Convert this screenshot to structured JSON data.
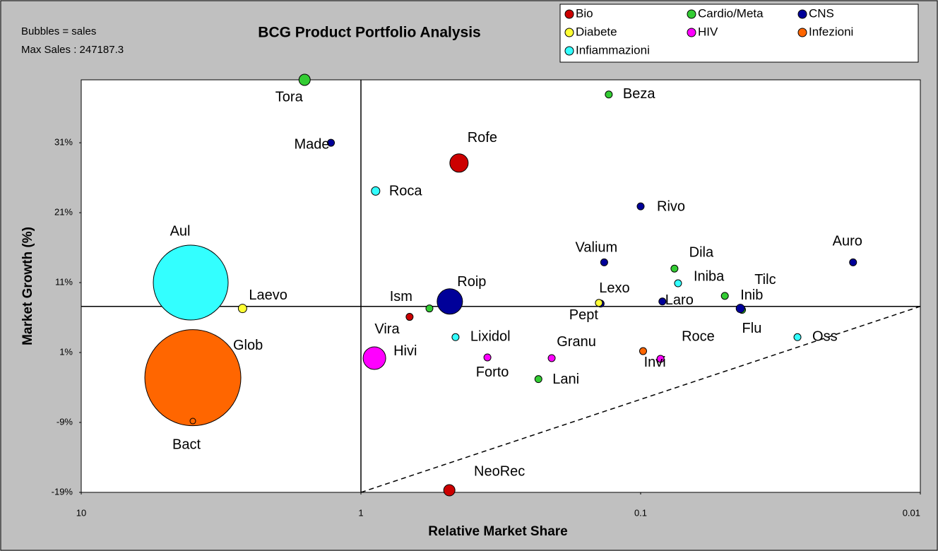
{
  "chart_data": {
    "type": "bubble",
    "title": "BCG Product Portfolio Analysis",
    "notes": [
      "Bubbles = sales",
      "Max Sales : 247187.3"
    ],
    "xlabel": "Relative Market Share",
    "ylabel": "Market Growth (%)",
    "xlog": true,
    "xlim": [
      10,
      0.01
    ],
    "xticks": [
      10,
      1,
      0.1,
      0.01
    ],
    "ylim": [
      -19,
      40
    ],
    "yticks": [
      {
        "value": 31,
        "label": "31%"
      },
      {
        "value": 21,
        "label": "21%"
      },
      {
        "value": 11,
        "label": "11%"
      },
      {
        "value": 1,
        "label": "1%"
      },
      {
        "value": -9,
        "label": "-9%"
      },
      {
        "value": -19,
        "label": "-19%"
      }
    ],
    "quadrant_lines": {
      "x": 1,
      "y": 7.6
    },
    "diagonal": {
      "x": [
        1,
        0.01
      ],
      "y": [
        -19,
        7.6
      ]
    },
    "legend": "top-right",
    "series": [
      {
        "name": "Bio",
        "color": "#cc0000",
        "labels": [
          "Rofe",
          "Ism",
          "NeoRec"
        ],
        "x": [
          0.446,
          0.67,
          0.483
        ],
        "values": [
          28.1,
          6.1,
          -18.7
        ],
        "sizes": [
          9034,
          1336,
          3421
        ]
      },
      {
        "name": "Cardio/Meta",
        "color": "#33cc33",
        "labels": [
          "Tora",
          "Beza",
          "Dila",
          "Tilc",
          "Flu",
          "Vira",
          "Lani"
        ],
        "x": [
          1.59,
          0.13,
          0.0757,
          0.05,
          0.0434,
          0.569,
          0.232
        ],
        "values": [
          40,
          37.9,
          13.0,
          9.1,
          7.1,
          7.3,
          -2.8
        ],
        "sizes": [
          3421,
          1336,
          1336,
          1336,
          1336,
          1336,
          1336
        ]
      },
      {
        "name": "CNS",
        "color": "#000099",
        "labels": [
          "Made",
          "Rivo",
          "Auro",
          "Valium",
          "Inib",
          "Roip",
          "Pept",
          "Laro"
        ],
        "x": [
          1.28,
          0.1,
          0.0174,
          0.135,
          0.044,
          0.481,
          0.139,
          0.0836
        ],
        "values": [
          31,
          21.9,
          13.9,
          13.9,
          7.3,
          8.3,
          8.0,
          8.3
        ],
        "sizes": [
          1336,
          1336,
          1336,
          1336,
          1925,
          17317,
          1336,
          1336
        ]
      },
      {
        "name": "Diabete",
        "color": "#ffff33",
        "labels": [
          "Laevo",
          "Lexo"
        ],
        "x": [
          2.65,
          0.141
        ],
        "values": [
          7.3,
          8.1
        ],
        "sizes": [
          1925,
          1336
        ]
      },
      {
        "name": "HIV",
        "color": "#ff00ff",
        "labels": [
          "Hivi",
          "Forto",
          "Granu",
          "Invi"
        ],
        "x": [
          0.895,
          0.353,
          0.208,
          0.0849
        ],
        "values": [
          0.2,
          0.3,
          0.2,
          0.1
        ],
        "sizes": [
          13683,
          1336,
          1336,
          1336
        ]
      },
      {
        "name": "Infezioni",
        "color": "#ff6600",
        "labels": [
          "Glob",
          "Bact",
          "Roce"
        ],
        "x": [
          3.99,
          3.99,
          0.098
        ],
        "values": [
          -2.6,
          -8.8,
          1.2
        ],
        "sizes": [
          247187.3,
          855,
          1336
        ]
      },
      {
        "name": "Infiammazioni",
        "color": "#33ffff",
        "labels": [
          "Aul",
          "Roca",
          "Iniba",
          "Lixidol",
          "Oss"
        ],
        "x": [
          4.06,
          0.886,
          0.0735,
          0.459,
          0.0275
        ],
        "values": [
          11.0,
          24.1,
          10.9,
          3.2,
          3.2
        ],
        "sizes": [
          150158,
          1925,
          1336,
          1336,
          1336
        ]
      }
    ]
  }
}
